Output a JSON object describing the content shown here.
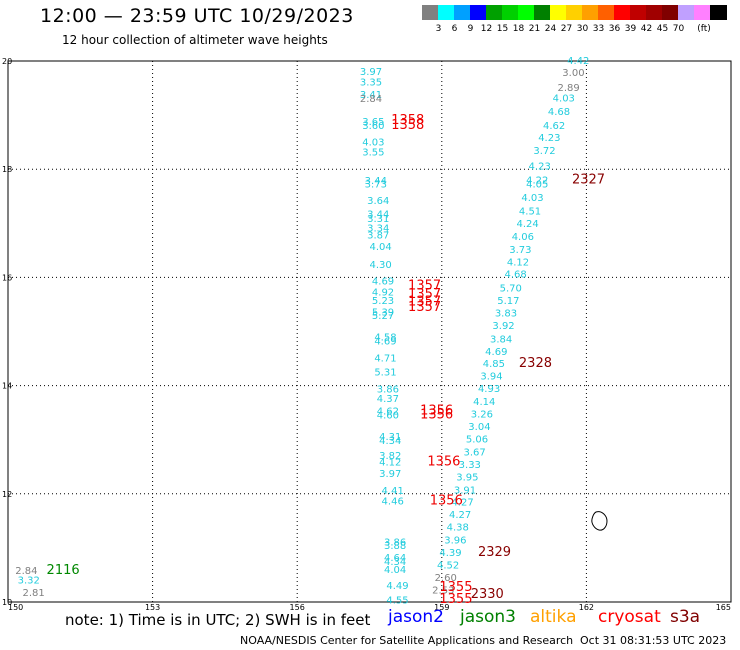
{
  "header": {
    "title": "12:00 — 23:59 UTC 10/29/2023",
    "subtitle": "12 hour collection of altimeter wave heights"
  },
  "legend": {
    "unit": "(ft)",
    "colors": [
      "#808080",
      "#00ffff",
      "#00a0ff",
      "#0000ff",
      "#00a000",
      "#00d000",
      "#00ff00",
      "#008000",
      "#ffff00",
      "#ffd000",
      "#ffa000",
      "#ff6000",
      "#ff0000",
      "#c00000",
      "#a00000",
      "#800000",
      "#c0a0ff",
      "#ff80ff",
      "#000000"
    ],
    "labels": [
      "3",
      "6",
      "9",
      "12",
      "15",
      "18",
      "21",
      "24",
      "27",
      "30",
      "33",
      "36",
      "39",
      "42",
      "45",
      "70"
    ]
  },
  "map": {
    "lon_ticks": [
      "150",
      "153",
      "156",
      "159",
      "162",
      "165"
    ],
    "lat_ticks": [
      "10",
      "12",
      "14",
      "16",
      "18",
      "20"
    ],
    "lon_range": [
      150,
      165
    ],
    "lat_range": [
      10,
      20
    ]
  },
  "tracks": {
    "left": [
      {
        "v": "3.97",
        "lon": 157.3,
        "lat": 19.74,
        "c": "cyan"
      },
      {
        "v": "3.35",
        "lon": 157.3,
        "lat": 19.55,
        "c": "cyan"
      },
      {
        "v": "3.41",
        "lon": 157.3,
        "lat": 19.32,
        "c": "cyan"
      },
      {
        "v": "2.84",
        "lon": 157.3,
        "lat": 19.24,
        "c": "gray"
      },
      {
        "v": "3.65",
        "lon": 157.35,
        "lat": 18.82,
        "c": "cyan"
      },
      {
        "v": "3.60",
        "lon": 157.35,
        "lat": 18.74,
        "c": "cyan"
      },
      {
        "v": "4.03",
        "lon": 157.35,
        "lat": 18.44,
        "c": "cyan"
      },
      {
        "v": "3.55",
        "lon": 157.35,
        "lat": 18.25,
        "c": "cyan"
      },
      {
        "v": "3.44",
        "lon": 157.4,
        "lat": 17.73,
        "c": "cyan"
      },
      {
        "v": "3.73",
        "lon": 157.4,
        "lat": 17.66,
        "c": "cyan"
      },
      {
        "v": "3.64",
        "lon": 157.45,
        "lat": 17.36,
        "c": "cyan"
      },
      {
        "v": "3.44",
        "lon": 157.45,
        "lat": 17.11,
        "c": "cyan"
      },
      {
        "v": "3.31",
        "lon": 157.45,
        "lat": 17.02,
        "c": "cyan"
      },
      {
        "v": "3.34",
        "lon": 157.45,
        "lat": 16.85,
        "c": "cyan"
      },
      {
        "v": "3.87",
        "lon": 157.45,
        "lat": 16.72,
        "c": "cyan"
      },
      {
        "v": "4.04",
        "lon": 157.5,
        "lat": 16.51,
        "c": "cyan"
      },
      {
        "v": "4.30",
        "lon": 157.5,
        "lat": 16.17,
        "c": "cyan"
      },
      {
        "v": "4.69",
        "lon": 157.55,
        "lat": 15.87,
        "c": "cyan"
      },
      {
        "v": "4.92",
        "lon": 157.55,
        "lat": 15.67,
        "c": "cyan"
      },
      {
        "v": "5.23",
        "lon": 157.55,
        "lat": 15.51,
        "c": "cyan"
      },
      {
        "v": "5.39",
        "lon": 157.55,
        "lat": 15.3,
        "c": "cyan"
      },
      {
        "v": "5.27",
        "lon": 157.55,
        "lat": 15.23,
        "c": "cyan"
      },
      {
        "v": "4.58",
        "lon": 157.6,
        "lat": 14.83,
        "c": "cyan"
      },
      {
        "v": "4.69",
        "lon": 157.6,
        "lat": 14.76,
        "c": "cyan"
      },
      {
        "v": "4.71",
        "lon": 157.6,
        "lat": 14.45,
        "c": "cyan"
      },
      {
        "v": "5.31",
        "lon": 157.6,
        "lat": 14.19,
        "c": "cyan"
      },
      {
        "v": "3.86",
        "lon": 157.65,
        "lat": 13.87,
        "c": "cyan"
      },
      {
        "v": "4.37",
        "lon": 157.65,
        "lat": 13.7,
        "c": "cyan"
      },
      {
        "v": "4.62",
        "lon": 157.65,
        "lat": 13.47,
        "c": "cyan"
      },
      {
        "v": "4.60",
        "lon": 157.65,
        "lat": 13.39,
        "c": "cyan"
      },
      {
        "v": "4.31",
        "lon": 157.7,
        "lat": 12.99,
        "c": "cyan"
      },
      {
        "v": "4.34",
        "lon": 157.7,
        "lat": 12.92,
        "c": "cyan"
      },
      {
        "v": "3.82",
        "lon": 157.7,
        "lat": 12.64,
        "c": "cyan"
      },
      {
        "v": "4.12",
        "lon": 157.7,
        "lat": 12.52,
        "c": "cyan"
      },
      {
        "v": "3.97",
        "lon": 157.7,
        "lat": 12.31,
        "c": "cyan"
      },
      {
        "v": "4.41",
        "lon": 157.75,
        "lat": 12.0,
        "c": "cyan"
      },
      {
        "v": "4.46",
        "lon": 157.75,
        "lat": 11.8,
        "c": "cyan"
      },
      {
        "v": "3.86",
        "lon": 157.8,
        "lat": 11.04,
        "c": "cyan"
      },
      {
        "v": "3.88",
        "lon": 157.8,
        "lat": 10.98,
        "c": "cyan"
      },
      {
        "v": "4.64",
        "lon": 157.8,
        "lat": 10.76,
        "c": "cyan"
      },
      {
        "v": "4.34",
        "lon": 157.8,
        "lat": 10.68,
        "c": "cyan"
      },
      {
        "v": "4.04",
        "lon": 157.8,
        "lat": 10.54,
        "c": "cyan"
      },
      {
        "v": "4.49",
        "lon": 157.85,
        "lat": 10.24,
        "c": "cyan"
      },
      {
        "v": "4.55",
        "lon": 157.85,
        "lat": 9.97,
        "c": "cyan"
      }
    ],
    "right": [
      {
        "v": "4.42",
        "lon": 161.6,
        "lat": 19.94,
        "c": "cyan"
      },
      {
        "v": "3.00",
        "lon": 161.5,
        "lat": 19.72,
        "c": "gray"
      },
      {
        "v": "2.89",
        "lon": 161.4,
        "lat": 19.45,
        "c": "gray"
      },
      {
        "v": "4.03",
        "lon": 161.3,
        "lat": 19.25,
        "c": "cyan"
      },
      {
        "v": "4.68",
        "lon": 161.2,
        "lat": 19.0,
        "c": "cyan"
      },
      {
        "v": "4.62",
        "lon": 161.1,
        "lat": 18.74,
        "c": "cyan"
      },
      {
        "v": "4.23",
        "lon": 161.0,
        "lat": 18.52,
        "c": "cyan"
      },
      {
        "v": "3.72",
        "lon": 160.9,
        "lat": 18.28,
        "c": "cyan"
      },
      {
        "v": "4.23",
        "lon": 160.8,
        "lat": 17.99,
        "c": "cyan"
      },
      {
        "v": "4.22",
        "lon": 160.75,
        "lat": 17.74,
        "c": "cyan"
      },
      {
        "v": "4.05",
        "lon": 160.75,
        "lat": 17.66,
        "c": "cyan"
      },
      {
        "v": "4.03",
        "lon": 160.65,
        "lat": 17.41,
        "c": "cyan"
      },
      {
        "v": "4.51",
        "lon": 160.6,
        "lat": 17.16,
        "c": "cyan"
      },
      {
        "v": "4.24",
        "lon": 160.55,
        "lat": 16.93,
        "c": "cyan"
      },
      {
        "v": "4.06",
        "lon": 160.45,
        "lat": 16.69,
        "c": "cyan"
      },
      {
        "v": "3.73",
        "lon": 160.4,
        "lat": 16.45,
        "c": "cyan"
      },
      {
        "v": "4.12",
        "lon": 160.35,
        "lat": 16.22,
        "c": "cyan"
      },
      {
        "v": "4.68",
        "lon": 160.3,
        "lat": 16.0,
        "c": "cyan"
      },
      {
        "v": "5.70",
        "lon": 160.2,
        "lat": 15.74,
        "c": "cyan"
      },
      {
        "v": "5.17",
        "lon": 160.15,
        "lat": 15.51,
        "c": "cyan"
      },
      {
        "v": "3.83",
        "lon": 160.1,
        "lat": 15.28,
        "c": "cyan"
      },
      {
        "v": "3.92",
        "lon": 160.05,
        "lat": 15.05,
        "c": "cyan"
      },
      {
        "v": "3.84",
        "lon": 160.0,
        "lat": 14.8,
        "c": "cyan"
      },
      {
        "v": "4.69",
        "lon": 159.9,
        "lat": 14.57,
        "c": "cyan"
      },
      {
        "v": "4.85",
        "lon": 159.85,
        "lat": 14.34,
        "c": "cyan"
      },
      {
        "v": "3.94",
        "lon": 159.8,
        "lat": 14.11,
        "c": "cyan"
      },
      {
        "v": "4.93",
        "lon": 159.75,
        "lat": 13.88,
        "c": "cyan"
      },
      {
        "v": "4.14",
        "lon": 159.65,
        "lat": 13.64,
        "c": "cyan"
      },
      {
        "v": "3.26",
        "lon": 159.6,
        "lat": 13.41,
        "c": "cyan"
      },
      {
        "v": "3.04",
        "lon": 159.55,
        "lat": 13.18,
        "c": "cyan"
      },
      {
        "v": "5.06",
        "lon": 159.5,
        "lat": 12.95,
        "c": "cyan"
      },
      {
        "v": "3.67",
        "lon": 159.45,
        "lat": 12.71,
        "c": "cyan"
      },
      {
        "v": "3.33",
        "lon": 159.35,
        "lat": 12.48,
        "c": "cyan"
      },
      {
        "v": "3.95",
        "lon": 159.3,
        "lat": 12.25,
        "c": "cyan"
      },
      {
        "v": "3.91",
        "lon": 159.25,
        "lat": 12.01,
        "c": "cyan"
      },
      {
        "v": "4.27",
        "lon": 159.2,
        "lat": 11.78,
        "c": "cyan"
      },
      {
        "v": "4.27",
        "lon": 159.15,
        "lat": 11.55,
        "c": "cyan"
      },
      {
        "v": "4.38",
        "lon": 159.1,
        "lat": 11.32,
        "c": "cyan"
      },
      {
        "v": "3.96",
        "lon": 159.05,
        "lat": 11.08,
        "c": "cyan"
      },
      {
        "v": "4.39",
        "lon": 158.95,
        "lat": 10.85,
        "c": "cyan"
      },
      {
        "v": "4.52",
        "lon": 158.9,
        "lat": 10.62,
        "c": "cyan"
      },
      {
        "v": "2.60",
        "lon": 158.85,
        "lat": 10.39,
        "c": "gray"
      },
      {
        "v": "2.53",
        "lon": 158.8,
        "lat": 10.16,
        "c": "gray"
      }
    ],
    "corner": [
      {
        "v": "2.84",
        "lon": 150.15,
        "lat": 10.52,
        "c": "gray"
      },
      {
        "v": "3.32",
        "lon": 150.2,
        "lat": 10.34,
        "c": "cyan"
      },
      {
        "v": "2.81",
        "lon": 150.3,
        "lat": 10.11,
        "c": "gray"
      }
    ]
  },
  "times": [
    {
      "t": "1358",
      "lon": 157.95,
      "lat": 18.84,
      "c": "red"
    },
    {
      "t": "1358",
      "lon": 157.95,
      "lat": 18.74,
      "c": "red"
    },
    {
      "t": "2327",
      "lon": 161.7,
      "lat": 17.74,
      "c": "darkred"
    },
    {
      "t": "1357",
      "lon": 158.3,
      "lat": 15.78,
      "c": "red"
    },
    {
      "t": "1357",
      "lon": 158.3,
      "lat": 15.62,
      "c": "red"
    },
    {
      "t": "1357",
      "lon": 158.3,
      "lat": 15.48,
      "c": "red"
    },
    {
      "t": "1357",
      "lon": 158.3,
      "lat": 15.38,
      "c": "red"
    },
    {
      "t": "2328",
      "lon": 160.6,
      "lat": 14.34,
      "c": "darkred"
    },
    {
      "t": "1356",
      "lon": 158.55,
      "lat": 13.47,
      "c": "red"
    },
    {
      "t": "1356",
      "lon": 158.55,
      "lat": 13.39,
      "c": "red"
    },
    {
      "t": "1356",
      "lon": 158.7,
      "lat": 12.52,
      "c": "red"
    },
    {
      "t": "1356",
      "lon": 158.75,
      "lat": 11.8,
      "c": "red"
    },
    {
      "t": "2329",
      "lon": 159.75,
      "lat": 10.85,
      "c": "darkred"
    },
    {
      "t": "1355",
      "lon": 158.95,
      "lat": 10.2,
      "c": "red"
    },
    {
      "t": "2330",
      "lon": 159.6,
      "lat": 10.07,
      "c": "darkred"
    },
    {
      "t": "1355",
      "lon": 158.95,
      "lat": 9.98,
      "c": "red"
    },
    {
      "t": "2116",
      "lon": 150.8,
      "lat": 10.52,
      "c": "green"
    }
  ],
  "footer": {
    "note": "note: 1) Time is in UTC; 2) SWH is in feet",
    "satellites": [
      {
        "name": "jason2",
        "color": "#0000ff"
      },
      {
        "name": "jason3",
        "color": "#008000"
      },
      {
        "name": "altika",
        "color": "#ffa000"
      },
      {
        "name": "cryosat",
        "color": "#ff0000"
      },
      {
        "name": "s3a",
        "color": "#800000"
      }
    ],
    "source": "NOAA/NESDIS Center for Satellite Applications and Research",
    "timestamp": "Oct 31 08:31:53 UTC 2023"
  }
}
